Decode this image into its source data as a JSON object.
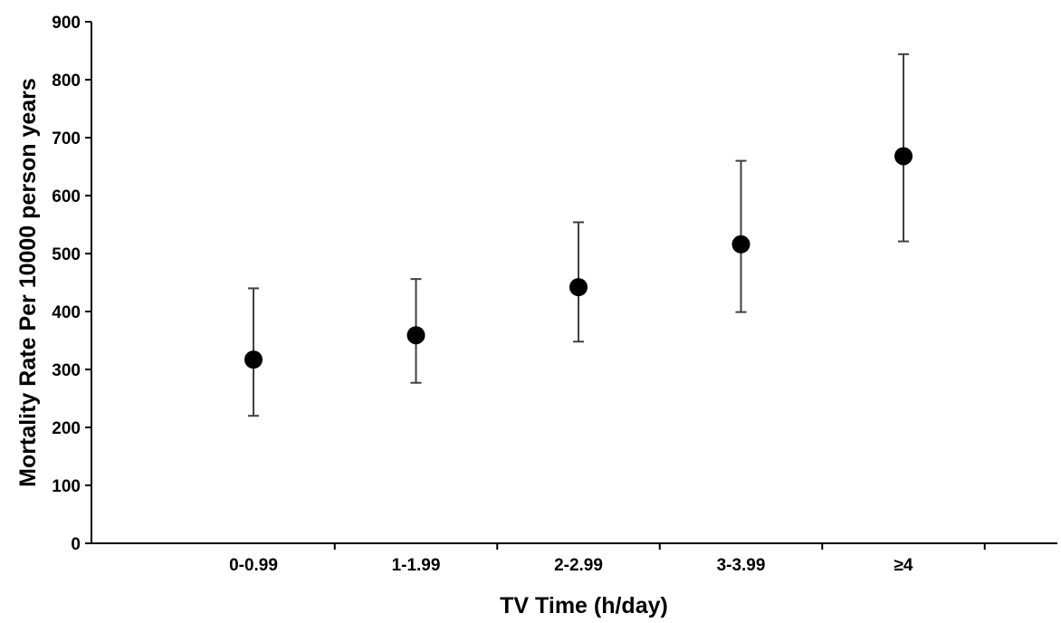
{
  "chart_data": {
    "type": "scatter",
    "title": "",
    "xlabel": "TV Time (h/day)",
    "ylabel": "Mortality Rate Per 10000 person years",
    "categories": [
      "0-0.99",
      "1-1.99",
      "2-2.99",
      "3-3.99",
      "≥4"
    ],
    "series": [
      {
        "values": [
          317,
          359,
          442,
          516,
          668
        ],
        "error_lower": [
          220,
          277,
          348,
          399,
          521
        ],
        "error_upper": [
          440,
          456,
          554,
          660,
          844
        ]
      }
    ],
    "ylim": [
      0,
      900
    ],
    "yticks": [
      "0",
      "100",
      "200",
      "300",
      "400",
      "500",
      "600",
      "700",
      "800",
      "900"
    ],
    "grid": false,
    "legend": "none",
    "colors": {
      "marker": "#000000",
      "error_bar": "#404040",
      "axis": "#000000"
    }
  }
}
